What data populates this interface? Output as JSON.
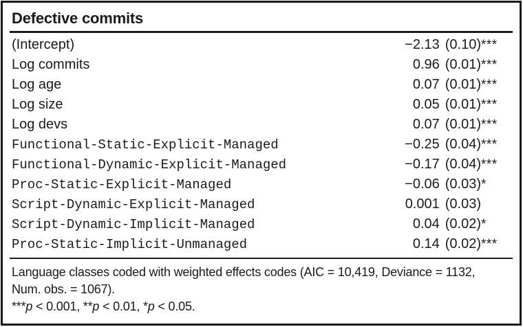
{
  "table": {
    "title": "Defective commits",
    "rows": [
      {
        "label": "(Intercept)",
        "estimate": "−2.13",
        "se": "(0.10)",
        "stars": "***"
      },
      {
        "label": "Log commits",
        "estimate": "0.96",
        "se": "(0.01)",
        "stars": "***"
      },
      {
        "label": "Log age",
        "estimate": "0.07",
        "se": "(0.01)",
        "stars": "***"
      },
      {
        "label": "Log size",
        "estimate": "0.05",
        "se": "(0.01)",
        "stars": "***"
      },
      {
        "label": "Log devs",
        "estimate": "0.07",
        "se": "(0.01)",
        "stars": "***"
      },
      {
        "label": "Functional-Static-Explicit-Managed",
        "estimate": "−0.25",
        "se": "(0.04)",
        "stars": "***"
      },
      {
        "label": "Functional-Dynamic-Explicit-Managed",
        "estimate": "−0.17",
        "se": "(0.04)",
        "stars": "***"
      },
      {
        "label": "Proc-Static-Explicit-Managed",
        "estimate": "−0.06",
        "se": "(0.03)",
        "stars": "*"
      },
      {
        "label": "Script-Dynamic-Explicit-Managed",
        "estimate": "0.001",
        "se": "(0.03)",
        "stars": ""
      },
      {
        "label": "Script-Dynamic-Implicit-Managed",
        "estimate": "0.04",
        "se": "(0.02)",
        "stars": "*"
      },
      {
        "label": "Proc-Static-Implicit-Unmanaged",
        "estimate": "0.14",
        "se": "(0.02)",
        "stars": "***"
      }
    ]
  },
  "notes": {
    "line1": "Language classes coded with weighted effects codes (AIC = 10,419, Deviance = 1132,",
    "line2": "Num. obs. = 1067).",
    "significance": [
      {
        "stars": "***",
        "symbol": "p",
        "threshold": " < 0.001, "
      },
      {
        "stars": "**",
        "symbol": "p",
        "threshold": " < 0.01, "
      },
      {
        "stars": "*",
        "symbol": "p",
        "threshold": " < 0.05."
      }
    ]
  },
  "colors": {
    "text": "#1a1a1a",
    "border": "#191919",
    "background": "#ffffff"
  }
}
